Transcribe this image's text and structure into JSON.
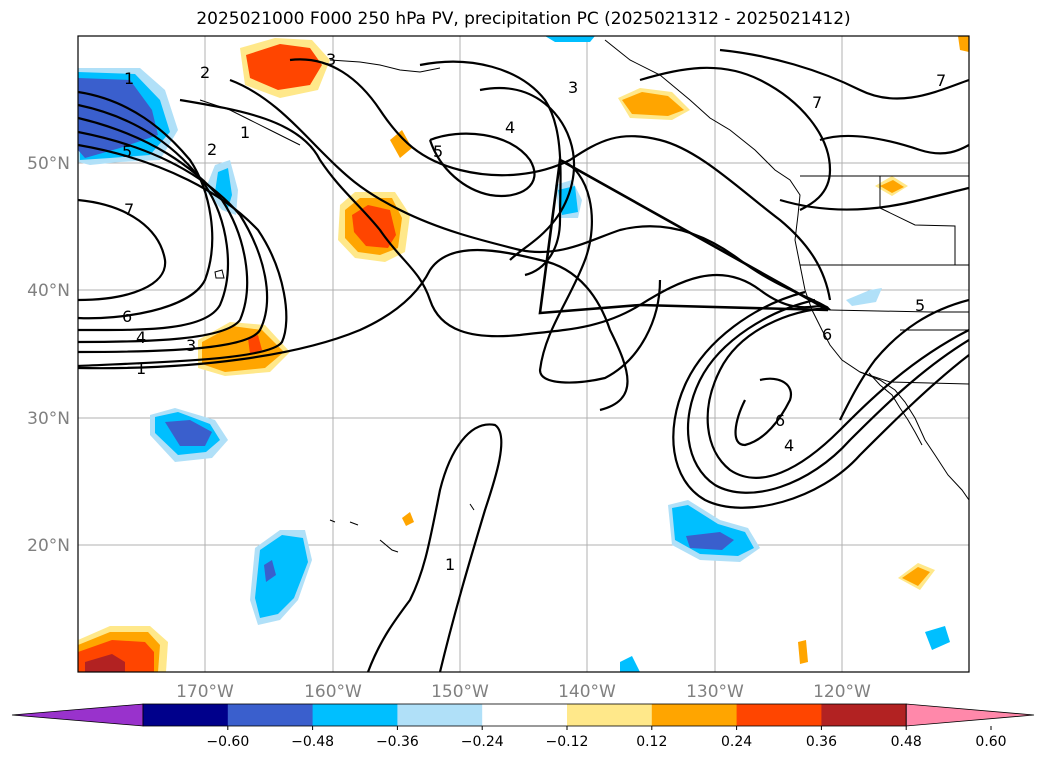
{
  "title": "2025021000 F000 250 hPa PV, precipitation PC (2025021312 - 2025021412)",
  "map": {
    "lat_ticks": [
      "50°N",
      "40°N",
      "30°N",
      "20°N"
    ],
    "lon_ticks": [
      "170°W",
      "160°W",
      "150°W",
      "140°W",
      "130°W",
      "120°W"
    ],
    "pv_contour_labels": [
      "1",
      "2",
      "3",
      "1",
      "2",
      "5",
      "7",
      "6",
      "4",
      "3",
      "1",
      "3",
      "4",
      "5",
      "1",
      "7",
      "7",
      "6",
      "4",
      "6",
      "5"
    ],
    "colors": {
      "pos_012_024": "#ffe88a",
      "pos_024_036": "#ffa500",
      "pos_036_048": "#ff4500",
      "pos_048_060": "#b22222",
      "neg_012_024": "#b0e0f8",
      "neg_024_036": "#00bfff",
      "neg_036_048": "#3a5fcd",
      "contour": "#000000",
      "grid": "#b0b0b0"
    }
  },
  "colorbar": {
    "ticks": [
      "−0.60",
      "−0.48",
      "−0.36",
      "−0.24",
      "−0.12",
      "0.12",
      "0.24",
      "0.36",
      "0.48",
      "0.60"
    ],
    "bins": [
      {
        "color": "#9932cc"
      },
      {
        "color": "#00008b"
      },
      {
        "color": "#3a5fcd"
      },
      {
        "color": "#00bfff"
      },
      {
        "color": "#b0e0f8"
      },
      {
        "color": "#ffffff"
      },
      {
        "color": "#ffe88a"
      },
      {
        "color": "#ffa500"
      },
      {
        "color": "#ff4500"
      },
      {
        "color": "#b22222"
      },
      {
        "color": "#ff88aa"
      }
    ]
  }
}
